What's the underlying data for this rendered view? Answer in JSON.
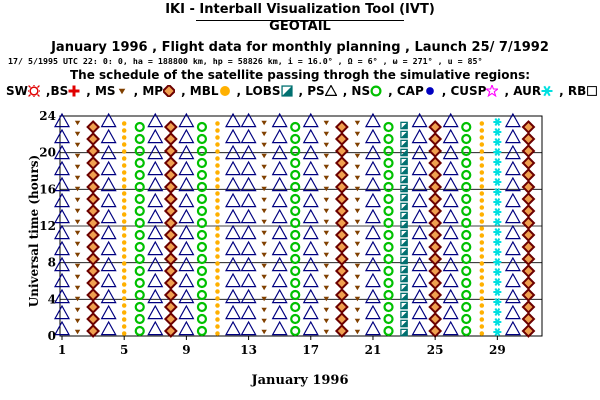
{
  "header": {
    "title": "IKI - Interball Visualization Tool (IVT)",
    "subtitle": "GEOTAIL",
    "flight_line": "January 1996 ,  Flight data for monthly planning ,   Launch 25/ 7/1992",
    "orbit_line": "17/ 5/1995 UTC 22: 0: 0, ha = 188800 km, hp =  58826 km, i = 16.0° , Ω =   6° , ω = 271° , u =  85°",
    "schedule_line": "The schedule of the satellite passing throgh the simulative regions:"
  },
  "legend": [
    {
      "label": "SW",
      "icon": "sun-icon",
      "color": "#e00000"
    },
    {
      "label": ",BS",
      "icon": "plus-icon",
      "color": "#e00000"
    },
    {
      "label": ", MS",
      "icon": "small-triangle-down-icon",
      "color": "#804000"
    },
    {
      "label": ", MP",
      "icon": "diamond-icon",
      "color": "#6b0000"
    },
    {
      "label": ", MBL",
      "icon": "dot-icon",
      "color": "#ffb000"
    },
    {
      "label": ", LOBS",
      "icon": "half-square-icon",
      "color": "#007070"
    },
    {
      "label": ", PS",
      "icon": "triangle-outline-icon",
      "color": "#000000"
    },
    {
      "label": ", NS",
      "icon": "ring-icon",
      "color": "#00c000"
    },
    {
      "label": ", CAP",
      "icon": "filled-dot-icon",
      "color": "#0000c0"
    },
    {
      "label": ", CUSP",
      "icon": "star-icon",
      "color": "#ff00ff"
    },
    {
      "label": ", AUR",
      "icon": "asterisk-icon",
      "color": "#00e0e0"
    },
    {
      "label": ", RB",
      "icon": "square-outline-icon",
      "color": "#000000"
    }
  ],
  "chart_data": {
    "type": "scatter",
    "xlabel": "January 1996",
    "ylabel": "Universal time (hours)",
    "xlim": [
      1,
      31
    ],
    "ylim": [
      0,
      24
    ],
    "x_ticks": [
      1,
      5,
      9,
      13,
      17,
      21,
      25,
      29
    ],
    "y_ticks": [
      0,
      4,
      8,
      12,
      16,
      20,
      24
    ],
    "day_regions": {
      "1": "PS",
      "2": "MS",
      "3": "MP",
      "4": "PS",
      "5": "MBL",
      "6": "NS",
      "7": "PS",
      "8": "MP",
      "9": "PS",
      "10": "NS",
      "11": "MBL",
      "12": "PS",
      "13": "PS",
      "14": "MS",
      "15": "PS",
      "16": "NS",
      "17": "PS",
      "18": "MS",
      "19": "MP",
      "20": "MS",
      "21": "PS",
      "22": "NS",
      "23": "LOBS",
      "24": "PS",
      "25": "MP",
      "26": "PS",
      "27": "NS",
      "28": "MBL",
      "29": "AUR",
      "30": "PS",
      "31": "MP"
    }
  }
}
